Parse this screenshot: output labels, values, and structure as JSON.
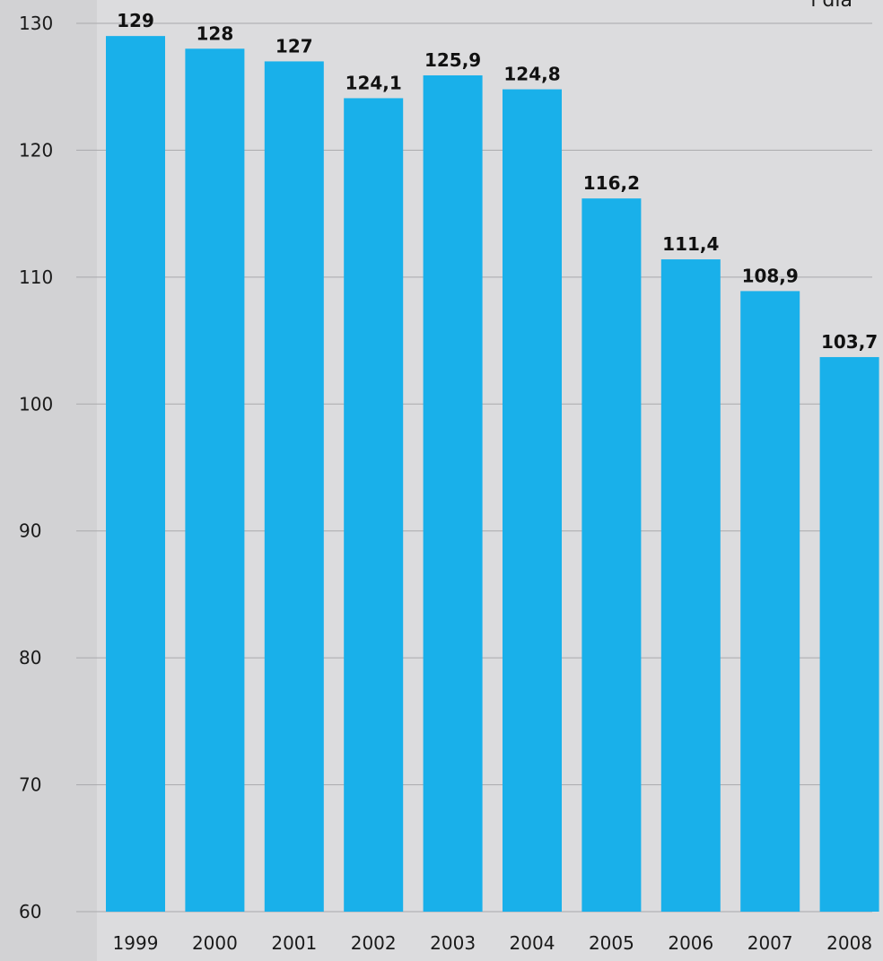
{
  "subtitle": "l día",
  "chart_data": {
    "type": "bar",
    "title": "",
    "xlabel": "",
    "ylabel": "",
    "categories": [
      "1999",
      "2000",
      "2001",
      "2002",
      "2003",
      "2004",
      "2005",
      "2006",
      "2007",
      "2008"
    ],
    "values": [
      129,
      128,
      127,
      124.1,
      125.9,
      124.8,
      116.2,
      111.4,
      108.9,
      103.7
    ],
    "value_labels": [
      "129",
      "128",
      "127",
      "124,1",
      "125,9",
      "124,8",
      "116,2",
      "111,4",
      "108,9",
      "103,7"
    ],
    "y_ticks": [
      60,
      70,
      80,
      90,
      100,
      110,
      120,
      130
    ],
    "ylim": [
      60,
      130
    ],
    "grid": true,
    "legend": "none",
    "colors": {
      "bar": "#19b0ea",
      "background": "#dcdcde",
      "axis_band": "#d2d2d4",
      "grid": "#a9a9ac"
    }
  }
}
